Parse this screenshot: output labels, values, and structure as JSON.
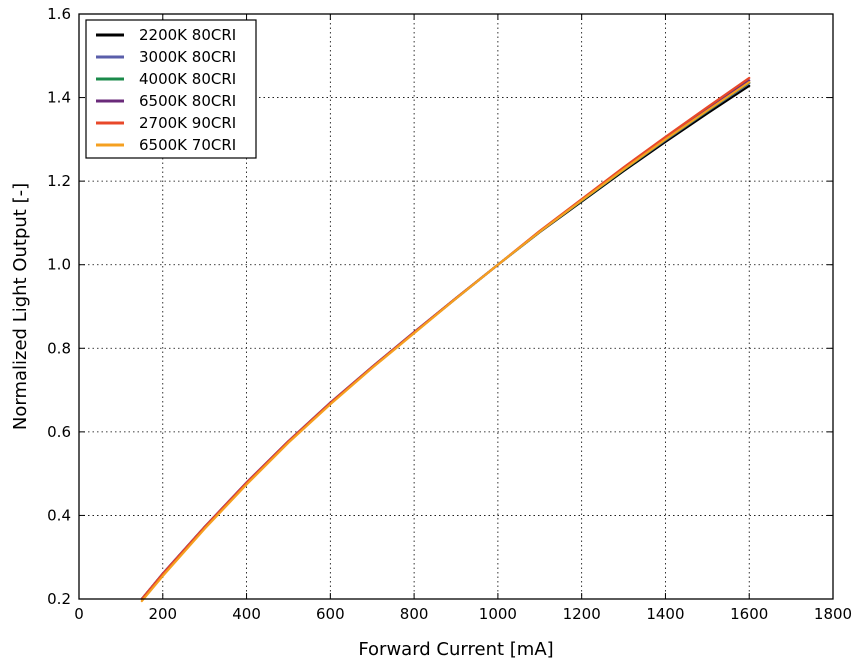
{
  "chart_data": {
    "type": "line",
    "title": "",
    "xlabel": "Forward Current [mA]",
    "ylabel": "Normalized Light Output [-]",
    "xlim": [
      0,
      1800
    ],
    "ylim": [
      0.2,
      1.6
    ],
    "xticks": [
      0,
      200,
      400,
      600,
      800,
      1000,
      1200,
      1400,
      1600,
      1800
    ],
    "yticks": [
      0.2,
      0.4,
      0.6,
      0.8,
      1.0,
      1.2,
      1.4,
      1.6
    ],
    "xtick_labels": [
      "0",
      "200",
      "400",
      "600",
      "800",
      "1000",
      "1200",
      "1400",
      "1600",
      "1800"
    ],
    "ytick_labels": [
      "0.2",
      "0.4",
      "0.6",
      "0.8",
      "1.0",
      "1.2",
      "1.4",
      "1.6"
    ],
    "grid": true,
    "legend_position": "top-left",
    "x": [
      150,
      200,
      300,
      400,
      500,
      600,
      700,
      800,
      900,
      1000,
      1100,
      1200,
      1300,
      1400,
      1500,
      1600
    ],
    "series": [
      {
        "name": "2200K 80CRI",
        "color": "#000000",
        "values": [
          0.2,
          0.26,
          0.372,
          0.477,
          0.576,
          0.668,
          0.754,
          0.837,
          0.919,
          1.0,
          1.078,
          1.151,
          1.224,
          1.294,
          1.362,
          1.428
        ]
      },
      {
        "name": "3000K 80CRI",
        "color": "#5a5eaa",
        "values": [
          0.2,
          0.26,
          0.372,
          0.478,
          0.577,
          0.669,
          0.755,
          0.838,
          0.92,
          1.0,
          1.079,
          1.153,
          1.227,
          1.298,
          1.367,
          1.434
        ]
      },
      {
        "name": "4000K 80CRI",
        "color": "#1a8a4a",
        "values": [
          0.2,
          0.26,
          0.372,
          0.478,
          0.577,
          0.669,
          0.755,
          0.838,
          0.92,
          1.0,
          1.079,
          1.153,
          1.227,
          1.299,
          1.368,
          1.436
        ]
      },
      {
        "name": "6500K 80CRI",
        "color": "#6a2a7a",
        "values": [
          0.2,
          0.261,
          0.373,
          0.479,
          0.578,
          0.67,
          0.756,
          0.839,
          0.92,
          1.0,
          1.08,
          1.155,
          1.23,
          1.302,
          1.372,
          1.441
        ]
      },
      {
        "name": "2700K 90CRI",
        "color": "#e8482a",
        "values": [
          0.2,
          0.26,
          0.372,
          0.478,
          0.577,
          0.669,
          0.755,
          0.838,
          0.92,
          1.0,
          1.081,
          1.157,
          1.233,
          1.306,
          1.377,
          1.447
        ]
      },
      {
        "name": "6500K 70CRI",
        "color": "#f5a020",
        "values": [
          0.195,
          0.255,
          0.368,
          0.474,
          0.574,
          0.666,
          0.753,
          0.836,
          0.919,
          1.0,
          1.079,
          1.154,
          1.228,
          1.3,
          1.369,
          1.437
        ]
      }
    ]
  }
}
